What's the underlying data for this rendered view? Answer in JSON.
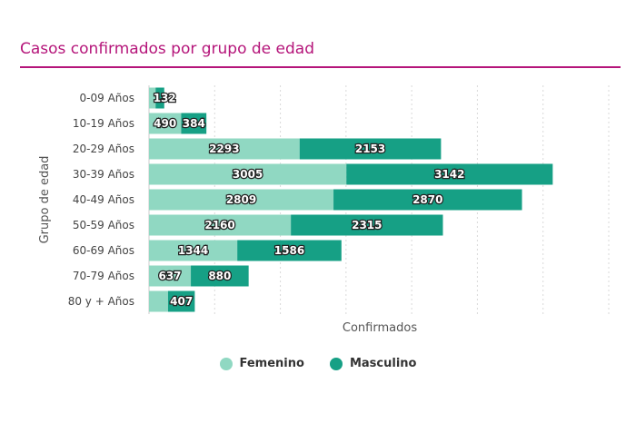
{
  "title": "Casos confirmados por grupo de edad",
  "chart_data": {
    "type": "bar",
    "orientation": "horizontal",
    "stacked": true,
    "title": "Casos confirmados por grupo de edad",
    "xlabel": "Confirmados",
    "ylabel": "Grupo de edad",
    "xlim": [
      0,
      7000
    ],
    "grid": true,
    "legend_position": "bottom",
    "categories": [
      "0-09 Años",
      "10-19 Años",
      "20-29 Años",
      "30-39 Años",
      "40-49 Años",
      "50-59 Años",
      "60-69 Años",
      "70-79 Años",
      "80 y + Años"
    ],
    "series": [
      {
        "name": "Femenino",
        "color": "#90d8c2",
        "values": [
          100,
          490,
          2293,
          3005,
          2809,
          2160,
          1344,
          637,
          290
        ],
        "labels": [
          "",
          "490",
          "2293",
          "3005",
          "2809",
          "2160",
          "1344",
          "637",
          ""
        ]
      },
      {
        "name": "Masculino",
        "color": "#16a085",
        "values": [
          132,
          384,
          2153,
          3142,
          2870,
          2315,
          1586,
          880,
          407
        ],
        "labels": [
          "132",
          "384",
          "2153",
          "3142",
          "2870",
          "2315",
          "1586",
          "880",
          "407"
        ]
      }
    ]
  }
}
